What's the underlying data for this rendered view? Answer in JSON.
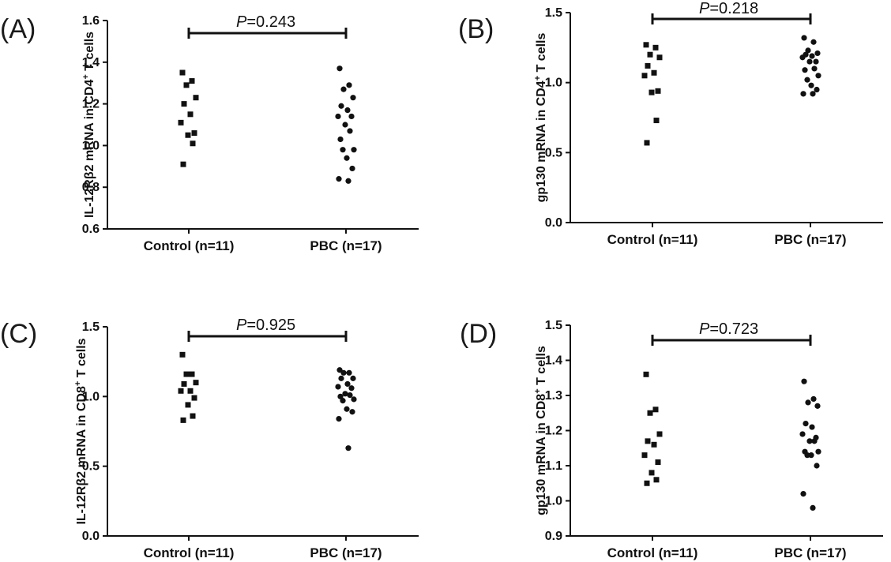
{
  "chart_data": [
    {
      "type": "scatter",
      "panel_label": "(A)",
      "ylabel_parts": {
        "before": "IL-12Rβ2 mRNA in CD4",
        "sup": "+",
        "after": " T cells"
      },
      "categories": [
        "Control (n=11)",
        "PBC (n=17)"
      ],
      "ylim": [
        0.6,
        1.6
      ],
      "yticks": [
        "0.6",
        "0.8",
        "1.0",
        "1.2",
        "1.4",
        "1.6"
      ],
      "pvalue": {
        "label": "P",
        "value": "=0.243"
      },
      "series": [
        {
          "marker": "square",
          "values": [
            1.35,
            1.31,
            1.29,
            1.23,
            1.2,
            1.15,
            1.11,
            1.06,
            1.05,
            1.01,
            0.91
          ]
        },
        {
          "marker": "circle",
          "values": [
            1.37,
            1.29,
            1.27,
            1.23,
            1.19,
            1.17,
            1.14,
            1.14,
            1.1,
            1.07,
            1.03,
            0.98,
            0.98,
            0.94,
            0.89,
            0.84,
            0.83
          ]
        }
      ]
    },
    {
      "type": "scatter",
      "panel_label": "(B)",
      "ylabel_parts": {
        "before": "gp130 mRNA in CD4",
        "sup": "+",
        "after": " T cells"
      },
      "categories": [
        "Control (n=11)",
        "PBC (n=17)"
      ],
      "ylim": [
        0.0,
        1.5
      ],
      "yticks": [
        "0.0",
        "0.5",
        "1.0",
        "1.5"
      ],
      "pvalue": {
        "label": "P",
        "value": "=0.218"
      },
      "series": [
        {
          "marker": "square",
          "values": [
            1.27,
            1.25,
            1.2,
            1.18,
            1.12,
            1.07,
            1.05,
            0.94,
            0.93,
            0.73,
            0.57
          ]
        },
        {
          "marker": "circle",
          "values": [
            1.32,
            1.29,
            1.23,
            1.21,
            1.2,
            1.19,
            1.18,
            1.15,
            1.15,
            1.1,
            1.09,
            1.05,
            1.02,
            0.98,
            0.95,
            0.92,
            0.92
          ]
        }
      ]
    },
    {
      "type": "scatter",
      "panel_label": "(C)",
      "ylabel_parts": {
        "before": "IL-12Rβ2 mRNA in CD8",
        "sup": "+",
        "after": " T cells"
      },
      "categories": [
        "Control (n=11)",
        "PBC (n=17)"
      ],
      "ylim": [
        0.0,
        1.5
      ],
      "yticks": [
        "0.0",
        "0.5",
        "1.0",
        "1.5"
      ],
      "pvalue": {
        "label": "P",
        "value": "=0.925"
      },
      "series": [
        {
          "marker": "square",
          "values": [
            1.3,
            1.16,
            1.16,
            1.1,
            1.09,
            1.04,
            1.04,
            0.99,
            0.94,
            0.86,
            0.83
          ]
        },
        {
          "marker": "circle",
          "values": [
            1.19,
            1.17,
            1.17,
            1.13,
            1.13,
            1.09,
            1.07,
            1.06,
            1.02,
            1.01,
            1.0,
            0.98,
            0.97,
            0.91,
            0.89,
            0.84,
            0.63
          ]
        }
      ]
    },
    {
      "type": "scatter",
      "panel_label": "(D)",
      "ylabel_parts": {
        "before": "gp130 mRNA in CD8",
        "sup": "+",
        "after": " T cells"
      },
      "categories": [
        "Control (n=11)",
        "PBC (n=17)"
      ],
      "ylim": [
        0.9,
        1.5
      ],
      "yticks": [
        "0.9",
        "1.0",
        "1.1",
        "1.2",
        "1.3",
        "1.4",
        "1.5"
      ],
      "pvalue": {
        "label": "P",
        "value": "=0.723"
      },
      "series": [
        {
          "marker": "square",
          "values": [
            1.36,
            1.26,
            1.25,
            1.19,
            1.17,
            1.16,
            1.13,
            1.11,
            1.08,
            1.06,
            1.05
          ]
        },
        {
          "marker": "circle",
          "values": [
            1.34,
            1.29,
            1.28,
            1.27,
            1.22,
            1.21,
            1.19,
            1.18,
            1.17,
            1.17,
            1.14,
            1.14,
            1.13,
            1.13,
            1.1,
            1.02,
            0.98
          ]
        }
      ]
    }
  ]
}
